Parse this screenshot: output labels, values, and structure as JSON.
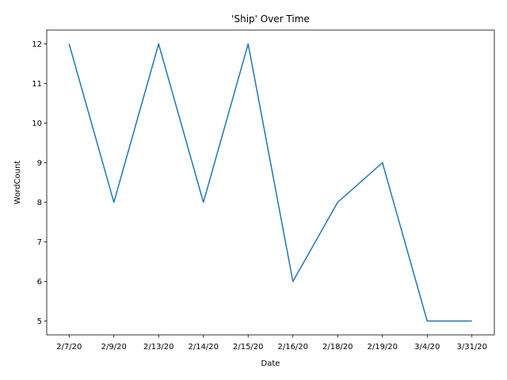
{
  "chart_data": {
    "type": "line",
    "title": "'Ship' Over Time",
    "xlabel": "Date",
    "ylabel": "WordCount",
    "categories": [
      "2/7/20",
      "2/9/20",
      "2/13/20",
      "2/14/20",
      "2/15/20",
      "2/16/20",
      "2/18/20",
      "2/19/20",
      "3/4/20",
      "3/31/20"
    ],
    "series": [
      {
        "values": [
          12,
          8,
          12,
          8,
          12,
          6,
          8,
          9,
          5,
          5
        ],
        "color": "#1f77b4"
      }
    ],
    "yticks": [
      "5",
      "6",
      "7",
      "8",
      "9",
      "10",
      "11",
      "12"
    ],
    "ylim": [
      4.65,
      12.35
    ],
    "grid": false,
    "legend": "none"
  }
}
